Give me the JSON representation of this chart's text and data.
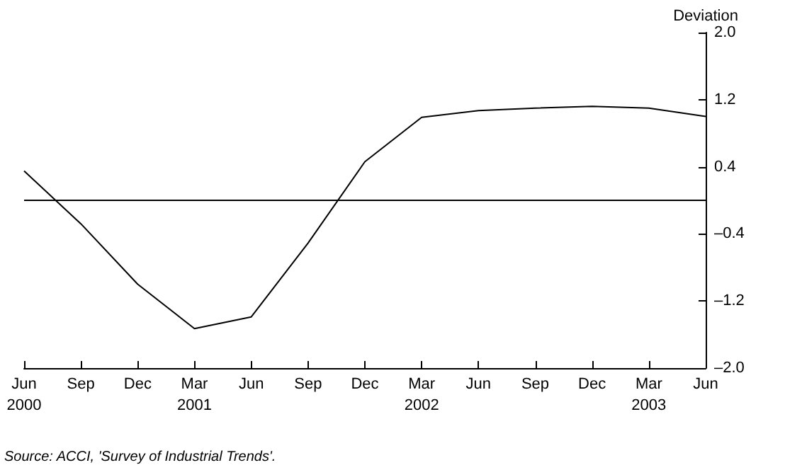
{
  "chart_data": {
    "type": "line",
    "ylabel": "Deviation",
    "categories": [
      "Jun\n2000",
      "Sep",
      "Dec",
      "Mar\n2001",
      "Jun",
      "Sep",
      "Dec",
      "Mar\n2002",
      "Jun",
      "Sep",
      "Dec",
      "Mar\n2003",
      "Jun"
    ],
    "series": [
      {
        "color": "#000000",
        "values": [
          0.35,
          -0.28,
          -1.0,
          -1.53,
          -1.39,
          -0.51,
          0.46,
          0.99,
          1.07,
          1.1,
          1.12,
          1.1,
          1.0
        ]
      }
    ],
    "ylim": [
      -2,
      2
    ],
    "yticks": [
      {
        "value": 2,
        "label": "2.0"
      },
      {
        "value": 1.2,
        "label": "1.2"
      },
      {
        "value": 0.4,
        "label": "0.4"
      },
      {
        "value": -0.4,
        "label": "–0.4"
      },
      {
        "value": -1.2,
        "label": "–1.2"
      },
      {
        "value": -2,
        "label": "–2.0"
      }
    ],
    "ref_lines": [
      {
        "axis": "y",
        "value": 0,
        "color": "#000000"
      }
    ],
    "grid": false,
    "marker": "none",
    "line_style": "solid",
    "annotations": [
      "Source: ACCI, 'Survey of Industrial Trends'."
    ]
  }
}
